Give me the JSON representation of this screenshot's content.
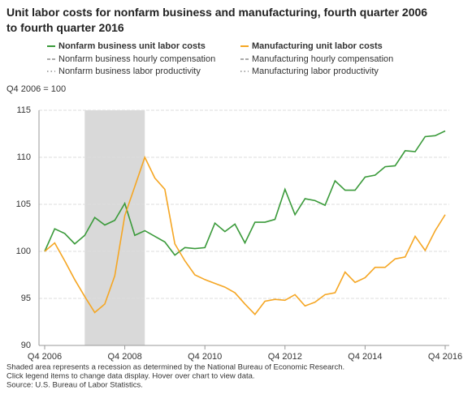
{
  "chart_data": {
    "type": "line",
    "title": "Unit labor costs for nonfarm business and manufacturing, fourth quarter 2006 to fourth quarter 2016",
    "y_label": "Q4 2006 = 100",
    "categories": [
      "Q4 2006",
      null,
      null,
      null,
      null,
      null,
      null,
      null,
      "Q4 2008",
      null,
      null,
      null,
      null,
      null,
      null,
      null,
      "Q4 2010",
      null,
      null,
      null,
      null,
      null,
      null,
      null,
      "Q4 2012",
      null,
      null,
      null,
      null,
      null,
      null,
      null,
      "Q4 2014",
      null,
      null,
      null,
      null,
      null,
      null,
      null,
      "Q4 2016"
    ],
    "series": [
      {
        "name": "Nonfarm business unit labor costs",
        "color": "#3a9a3a",
        "values": [
          100,
          102.4,
          101.9,
          100.8,
          101.7,
          103.6,
          102.8,
          103.3,
          105.1,
          101.7,
          102.2,
          101.6,
          101.0,
          99.6,
          100.4,
          100.3,
          100.4,
          103.0,
          102.1,
          102.9,
          100.9,
          103.1,
          103.1,
          103.4,
          106.6,
          103.9,
          105.6,
          105.4,
          104.9,
          107.5,
          106.5,
          106.5,
          107.9,
          108.1,
          109.0,
          109.1,
          110.7,
          110.6,
          112.2,
          112.3,
          112.8
        ]
      },
      {
        "name": "Manufacturing unit labor costs",
        "color": "#f5a623",
        "values": [
          100,
          100.9,
          99.0,
          97.0,
          95.2,
          93.5,
          94.4,
          97.4,
          103.8,
          106.9,
          110.0,
          107.8,
          106.6,
          100.8,
          99.0,
          97.5,
          97.0,
          96.6,
          96.2,
          95.6,
          94.4,
          93.3,
          94.7,
          94.9,
          94.8,
          95.4,
          94.2,
          94.6,
          95.4,
          95.6,
          97.8,
          96.7,
          97.2,
          98.3,
          98.3,
          99.2,
          99.4,
          101.6,
          100.1,
          102.2,
          103.9
        ]
      }
    ],
    "inactive_series": [
      {
        "name": "Nonfarm business hourly compensation",
        "color": "#aaaaaa",
        "dash": "dashed"
      },
      {
        "name": "Manufacturing hourly compensation",
        "color": "#aaaaaa",
        "dash": "dashed"
      },
      {
        "name": "Nonfarm business labor productivity",
        "color": "#aaaaaa",
        "dash": "dotted"
      },
      {
        "name": "Manufacturing labor productivity",
        "color": "#aaaaaa",
        "dash": "dotted"
      }
    ],
    "recession": {
      "start": 4,
      "end": 10,
      "color": "#d9d9d9"
    },
    "ylim": [
      90,
      115
    ],
    "yticks": [
      90,
      95,
      100,
      105,
      110,
      115
    ],
    "grid": true,
    "notes": [
      "Shaded area represents a recession as determined by the National Bureau of Economic Research.",
      "Click legend items to change data display. Hover over chart to view data.",
      "Source: U.S. Bureau of Labor Statistics."
    ]
  }
}
